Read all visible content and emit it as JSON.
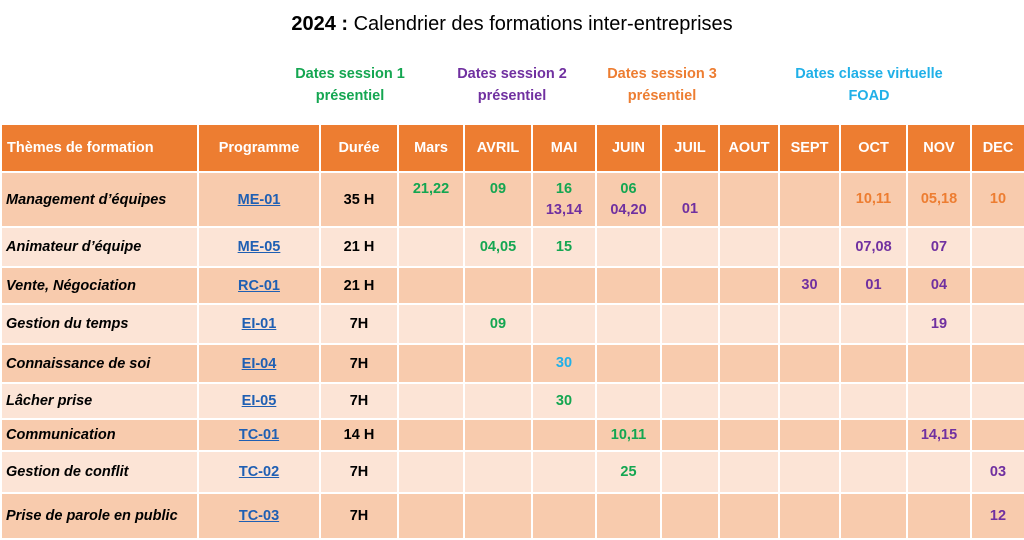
{
  "title": {
    "year": "2024 :",
    "text": " Calendrier des formations inter-entreprises"
  },
  "legend": {
    "s1": {
      "line1": "Dates session 1",
      "line2": "présentiel"
    },
    "s2": {
      "line1": "Dates session 2",
      "line2": "présentiel"
    },
    "s3": {
      "line1": "Dates session 3",
      "line2": "présentiel"
    },
    "cv": {
      "line1": "Dates classe virtuelle",
      "line2": "FOAD"
    }
  },
  "colors": {
    "header": "#ED7D31",
    "row_dark": "#F8CBAD",
    "row_light": "#FCE4D6",
    "session1": "#14A651",
    "session2": "#7030A0",
    "session3": "#ED7D31",
    "virtual": "#20B0E8"
  },
  "headers": [
    "Thèmes de formation",
    "Programme",
    "Durée",
    "Mars",
    "AVRIL",
    "MAI",
    "JUIN",
    "JUIL",
    "AOUT",
    "SEPT",
    "OCT",
    "NOV",
    "DEC"
  ],
  "rows": [
    {
      "theme": "Management d’équipes",
      "prog": "ME-01",
      "dur": "35 H",
      "mars": "21,22",
      "avril": "09",
      "mai_a": "16",
      "mai_b": "13,14",
      "juin_a": "06",
      "juin_b": "04,20",
      "juil": "01",
      "oct": "10,11",
      "nov": "05,18",
      "dec": "10"
    },
    {
      "theme": "Animateur d’équipe",
      "prog": "ME-05",
      "dur": "21 H",
      "avril": "04,05",
      "mai": "15",
      "oct": "07,08",
      "nov": "07"
    },
    {
      "theme": "Vente, Négociation",
      "prog": "RC-01",
      "dur": "21 H",
      "sept": "30",
      "oct": "01",
      "nov": "04"
    },
    {
      "theme": "Gestion du temps",
      "prog": "EI-01",
      "dur": "7H",
      "avril": "09",
      "nov": "19"
    },
    {
      "theme": "Connaissance de soi",
      "prog": "EI-04",
      "dur": "7H",
      "mai": "30"
    },
    {
      "theme": "Lâcher prise",
      "prog": "EI-05",
      "dur": "7H",
      "mai": "30"
    },
    {
      "theme": "Communication",
      "prog": "TC-01",
      "dur": "14 H",
      "juin": "10,11",
      "nov": "14,15"
    },
    {
      "theme": "Gestion de conflit",
      "prog": "TC-02",
      "dur": "7H",
      "juin": "25",
      "dec": "03"
    },
    {
      "theme": "Prise de parole en public",
      "prog": "TC-03",
      "dur": "7H",
      "dec": "12"
    }
  ]
}
